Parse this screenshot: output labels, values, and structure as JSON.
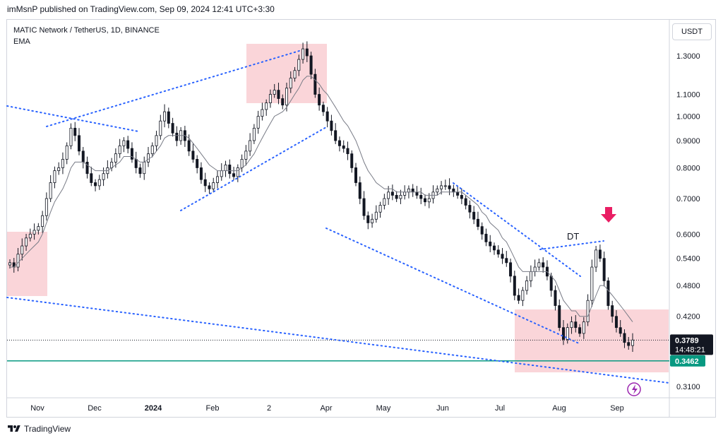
{
  "publish_line": "imMsnP published on TradingView.com, Sep 09, 2024 12:41 UTC+3:30",
  "legend": {
    "symbol_line": "MATIC Network / TetherUS, 1D, BINANCE",
    "indicator": "EMA"
  },
  "currency_button": "USDT",
  "footer_brand": "TradingView",
  "colors": {
    "bg": "#ffffff",
    "candle": "#131722",
    "ema": "#787b86",
    "trendline": "#2962ff",
    "zone": "#f8c7cc",
    "support": "#089981",
    "arrow": "#e91e63",
    "price_tag_current": "#131722",
    "price_tag_support": "#089981",
    "grid_border": "#d1d4dc"
  },
  "chart_data": {
    "type": "candlestick",
    "y_axis_ticks": [
      "1.3000",
      "1.1000",
      "1.0000",
      "0.9000",
      "0.8000",
      "0.7000",
      "0.6000",
      "0.5400",
      "0.4800",
      "0.4200",
      "0.3100"
    ],
    "ylim": [
      0.295,
      1.52
    ],
    "y_scale": "log",
    "x_axis_ticks": [
      "Nov",
      "Dec",
      "2024",
      "Feb",
      "2",
      "Apr",
      "May",
      "Jun",
      "Jul",
      "Aug",
      "Sep"
    ],
    "current_price": {
      "value": "0.3789",
      "countdown": "14:48:21"
    },
    "support_price": "0.3462",
    "annotation_text": "DT",
    "close_series": [
      0.53,
      0.52,
      0.55,
      0.57,
      0.59,
      0.6,
      0.61,
      0.62,
      0.65,
      0.7,
      0.75,
      0.79,
      0.8,
      0.83,
      0.88,
      0.95,
      0.92,
      0.86,
      0.82,
      0.78,
      0.75,
      0.74,
      0.76,
      0.78,
      0.8,
      0.82,
      0.85,
      0.88,
      0.9,
      0.87,
      0.83,
      0.8,
      0.78,
      0.82,
      0.85,
      0.88,
      0.92,
      0.98,
      1.02,
      0.97,
      0.93,
      0.9,
      0.94,
      0.9,
      0.86,
      0.83,
      0.8,
      0.76,
      0.74,
      0.73,
      0.75,
      0.77,
      0.79,
      0.81,
      0.78,
      0.77,
      0.8,
      0.83,
      0.86,
      0.9,
      0.95,
      1.0,
      1.03,
      1.06,
      1.1,
      1.12,
      1.08,
      1.05,
      1.13,
      1.18,
      1.22,
      1.28,
      1.34,
      1.3,
      1.2,
      1.1,
      1.05,
      1.02,
      0.98,
      0.94,
      0.9,
      0.88,
      0.87,
      0.85,
      0.8,
      0.75,
      0.7,
      0.65,
      0.63,
      0.64,
      0.66,
      0.68,
      0.7,
      0.72,
      0.71,
      0.7,
      0.71,
      0.72,
      0.73,
      0.72,
      0.71,
      0.7,
      0.69,
      0.7,
      0.72,
      0.73,
      0.74,
      0.74,
      0.73,
      0.72,
      0.71,
      0.7,
      0.68,
      0.66,
      0.64,
      0.62,
      0.6,
      0.58,
      0.57,
      0.56,
      0.55,
      0.54,
      0.53,
      0.5,
      0.46,
      0.45,
      0.47,
      0.49,
      0.51,
      0.52,
      0.53,
      0.52,
      0.5,
      0.47,
      0.44,
      0.4,
      0.38,
      0.4,
      0.41,
      0.4,
      0.39,
      0.41,
      0.45,
      0.52,
      0.56,
      0.54,
      0.49,
      0.44,
      0.42,
      0.4,
      0.39,
      0.375,
      0.37,
      0.379
    ],
    "ema_series": [
      0.52,
      0.52,
      0.53,
      0.54,
      0.55,
      0.56,
      0.57,
      0.58,
      0.6,
      0.63,
      0.66,
      0.69,
      0.71,
      0.73,
      0.76,
      0.8,
      0.82,
      0.82,
      0.82,
      0.81,
      0.8,
      0.79,
      0.79,
      0.79,
      0.79,
      0.8,
      0.81,
      0.82,
      0.84,
      0.84,
      0.84,
      0.83,
      0.82,
      0.82,
      0.83,
      0.84,
      0.86,
      0.88,
      0.91,
      0.92,
      0.92,
      0.92,
      0.92,
      0.92,
      0.91,
      0.89,
      0.87,
      0.85,
      0.83,
      0.81,
      0.8,
      0.79,
      0.79,
      0.79,
      0.79,
      0.79,
      0.79,
      0.8,
      0.81,
      0.83,
      0.85,
      0.88,
      0.91,
      0.94,
      0.97,
      1.0,
      1.01,
      1.02,
      1.04,
      1.07,
      1.1,
      1.13,
      1.17,
      1.19,
      1.19,
      1.17,
      1.15,
      1.12,
      1.1,
      1.07,
      1.04,
      1.01,
      0.98,
      0.96,
      0.93,
      0.9,
      0.86,
      0.82,
      0.79,
      0.77,
      0.75,
      0.74,
      0.73,
      0.73,
      0.73,
      0.72,
      0.72,
      0.72,
      0.72,
      0.72,
      0.72,
      0.72,
      0.71,
      0.71,
      0.71,
      0.71,
      0.72,
      0.72,
      0.72,
      0.72,
      0.72,
      0.72,
      0.71,
      0.7,
      0.69,
      0.68,
      0.66,
      0.65,
      0.63,
      0.62,
      0.61,
      0.59,
      0.58,
      0.56,
      0.54,
      0.52,
      0.51,
      0.51,
      0.51,
      0.51,
      0.51,
      0.51,
      0.51,
      0.5,
      0.49,
      0.47,
      0.45,
      0.44,
      0.43,
      0.43,
      0.42,
      0.42,
      0.42,
      0.44,
      0.46,
      0.48,
      0.48,
      0.47,
      0.46,
      0.45,
      0.44,
      0.43,
      0.42,
      0.41
    ]
  }
}
